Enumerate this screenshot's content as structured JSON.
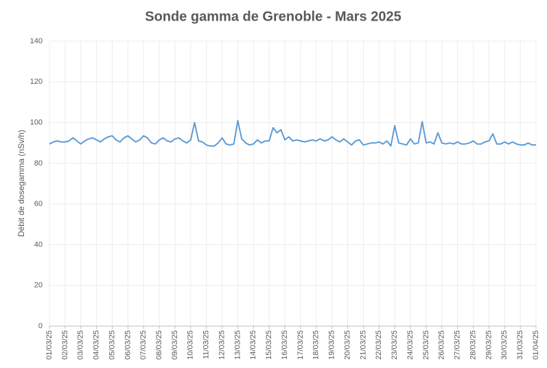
{
  "chart_data": {
    "type": "line",
    "title": "Sonde gamma de Grenoble - Mars 2025",
    "y_label": "Débit de dosegamma (nSv/h)",
    "series": [
      {
        "name": "Débit de dose gamma",
        "color": "#5b9bd5",
        "x": [
          0,
          0.25,
          0.5,
          0.75,
          1,
          1.25,
          1.5,
          1.75,
          2,
          2.25,
          2.5,
          2.75,
          3,
          3.25,
          3.5,
          3.75,
          4,
          4.25,
          4.5,
          4.75,
          5,
          5.25,
          5.5,
          5.75,
          6,
          6.25,
          6.5,
          6.75,
          7,
          7.25,
          7.5,
          7.75,
          8,
          8.25,
          8.5,
          8.75,
          9,
          9.25,
          9.5,
          9.75,
          10,
          10.25,
          10.5,
          10.75,
          11,
          11.25,
          11.5,
          11.75,
          12,
          12.25,
          12.5,
          12.75,
          13,
          13.25,
          13.5,
          13.75,
          14,
          14.25,
          14.5,
          14.75,
          15,
          15.25,
          15.5,
          15.75,
          16,
          16.25,
          16.5,
          16.75,
          17,
          17.25,
          17.5,
          17.75,
          18,
          18.25,
          18.5,
          18.75,
          19,
          19.25,
          19.5,
          19.75,
          20,
          20.25,
          20.5,
          20.75,
          21,
          21.25,
          21.5,
          21.75,
          22,
          22.25,
          22.5,
          22.75,
          23,
          23.25,
          23.5,
          23.75,
          24,
          24.25,
          24.5,
          24.75,
          25,
          25.25,
          25.5,
          25.75,
          26,
          26.25,
          26.5,
          26.75,
          27,
          27.25,
          27.5,
          27.75,
          28,
          28.25,
          28.5,
          28.75,
          29,
          29.25,
          29.5,
          29.75,
          30,
          30.25,
          30.5,
          30.75,
          31
        ],
        "values": [
          89.5,
          90.5,
          91,
          90.5,
          90.5,
          91,
          92.5,
          91,
          89.5,
          91,
          92,
          92.5,
          91.5,
          90.5,
          92,
          93,
          93.5,
          91.5,
          90.5,
          92.5,
          93.5,
          92,
          90.5,
          91.5,
          93.5,
          92.5,
          90,
          89.5,
          91.5,
          92.5,
          91,
          90.5,
          92,
          92.5,
          91,
          90,
          91.5,
          100,
          91,
          90.5,
          89,
          88.5,
          88.5,
          90,
          92.5,
          89.5,
          89,
          89.5,
          101,
          92,
          90,
          89,
          89.5,
          91.5,
          90,
          91,
          91,
          97.5,
          95,
          96.5,
          91.5,
          93,
          91,
          91.5,
          91,
          90.5,
          91,
          91.5,
          91,
          92,
          91,
          91.5,
          93,
          91.5,
          90.5,
          92,
          90.5,
          89,
          91,
          91.5,
          89,
          89.5,
          90,
          90,
          90.5,
          89.5,
          91,
          88.5,
          98.5,
          90,
          89.5,
          89,
          92,
          89.5,
          90,
          100.5,
          90,
          90.5,
          89.5,
          95,
          90,
          89.5,
          90,
          89.5,
          90.5,
          89.5,
          89.5,
          90,
          91,
          89.5,
          89.5,
          90.5,
          91,
          94.5,
          89.5,
          89.5,
          90.5,
          89.5,
          90.5,
          89.5,
          89,
          89,
          90,
          89,
          89
        ]
      }
    ],
    "xlim": [
      0,
      31
    ],
    "xticks": [
      {
        "value": 0,
        "label": "01/03/25"
      },
      {
        "value": 1,
        "label": "02/03/25"
      },
      {
        "value": 2,
        "label": "03/03/25"
      },
      {
        "value": 3,
        "label": "04/03/25"
      },
      {
        "value": 4,
        "label": "05/03/25"
      },
      {
        "value": 5,
        "label": "06/03/25"
      },
      {
        "value": 6,
        "label": "07/03/25"
      },
      {
        "value": 7,
        "label": "08/03/25"
      },
      {
        "value": 8,
        "label": "09/03/25"
      },
      {
        "value": 9,
        "label": "10/03/25"
      },
      {
        "value": 10,
        "label": "11/03/25"
      },
      {
        "value": 11,
        "label": "12/03/25"
      },
      {
        "value": 12,
        "label": "13/03/25"
      },
      {
        "value": 13,
        "label": "14/03/25"
      },
      {
        "value": 14,
        "label": "15/03/25"
      },
      {
        "value": 15,
        "label": "16/03/25"
      },
      {
        "value": 16,
        "label": "17/03/25"
      },
      {
        "value": 17,
        "label": "18/03/25"
      },
      {
        "value": 18,
        "label": "19/03/25"
      },
      {
        "value": 19,
        "label": "20/03/25"
      },
      {
        "value": 20,
        "label": "21/03/25"
      },
      {
        "value": 21,
        "label": "22/03/25"
      },
      {
        "value": 22,
        "label": "23/03/25"
      },
      {
        "value": 23,
        "label": "24/03/25"
      },
      {
        "value": 24,
        "label": "25/03/25"
      },
      {
        "value": 25,
        "label": "26/03/25"
      },
      {
        "value": 26,
        "label": "27/03/25"
      },
      {
        "value": 27,
        "label": "28/03/25"
      },
      {
        "value": 28,
        "label": "29/03/25"
      },
      {
        "value": 29,
        "label": "30/03/25"
      },
      {
        "value": 30,
        "label": "31/03/25"
      },
      {
        "value": 31,
        "label": "01/04/25"
      }
    ],
    "ylim": [
      0,
      140
    ],
    "yticks": [
      0,
      20,
      40,
      60,
      80,
      100,
      120,
      140
    ],
    "grid": true
  }
}
